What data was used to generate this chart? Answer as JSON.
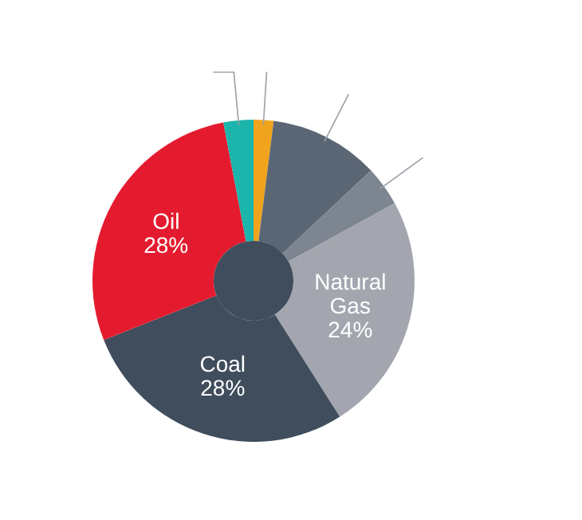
{
  "chart_data": {
    "type": "donut",
    "categories": [
      null,
      null,
      null,
      "Natural Gas",
      "Coal",
      "Oil",
      null
    ],
    "values": [
      2,
      11,
      4,
      24,
      28,
      28,
      3
    ],
    "colors": [
      "#f0a31c",
      "#5b6675",
      "#7d8591",
      "#a3a6ae",
      "#3f4d5c",
      "#e41b2f",
      "#1bb5ac"
    ],
    "value_labels": [
      null,
      null,
      null,
      "24%",
      "28%",
      "28%",
      null
    ]
  }
}
